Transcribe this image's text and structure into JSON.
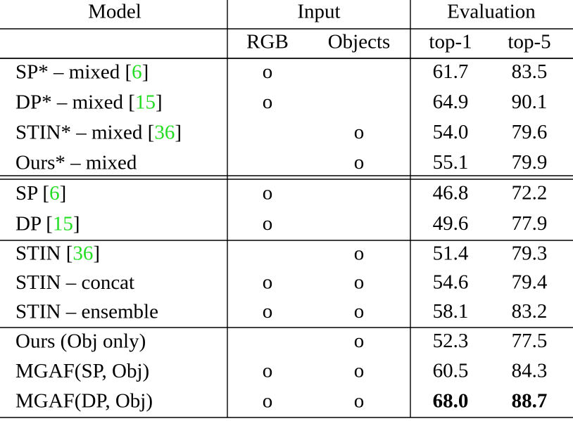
{
  "header": {
    "model": "Model",
    "input": "Input",
    "evaluation": "Evaluation",
    "rgb": "RGB",
    "objects": "Objects",
    "top1": "top-1",
    "top5": "top-5"
  },
  "groups": [
    [
      {
        "model": [
          {
            "text": "SP* – mixed ["
          },
          {
            "cite": "6"
          },
          {
            "text": "]"
          }
        ],
        "rgb": "o",
        "objects": null,
        "top1": "61.7",
        "top5": "83.5"
      },
      {
        "model": [
          {
            "text": "DP* – mixed ["
          },
          {
            "cite": "15"
          },
          {
            "text": "]"
          }
        ],
        "rgb": "o",
        "objects": null,
        "top1": "64.9",
        "top5": "90.1"
      },
      {
        "model": [
          {
            "text": "STIN* – mixed ["
          },
          {
            "cite": "36"
          },
          {
            "text": "]"
          }
        ],
        "rgb": null,
        "objects": "o",
        "top1": "54.0",
        "top5": "79.6"
      },
      {
        "model": [
          {
            "text": "Ours* – mixed"
          }
        ],
        "rgb": null,
        "objects": "o",
        "top1": "55.1",
        "top5": "79.9"
      }
    ],
    [
      {
        "model": [
          {
            "text": "SP ["
          },
          {
            "cite": "6"
          },
          {
            "text": "]"
          }
        ],
        "rgb": "o",
        "objects": null,
        "top1": "46.8",
        "top5": "72.2"
      },
      {
        "model": [
          {
            "text": "DP ["
          },
          {
            "cite": "15"
          },
          {
            "text": "]"
          }
        ],
        "rgb": "o",
        "objects": null,
        "top1": "49.6",
        "top5": "77.9"
      }
    ],
    [
      {
        "model": [
          {
            "text": "STIN ["
          },
          {
            "cite": "36"
          },
          {
            "text": "]"
          }
        ],
        "rgb": null,
        "objects": "o",
        "top1": "51.4",
        "top5": "79.3"
      },
      {
        "model": [
          {
            "text": "STIN – concat"
          }
        ],
        "rgb": "o",
        "objects": "o",
        "top1": "54.6",
        "top5": "79.4"
      },
      {
        "model": [
          {
            "text": "STIN – ensemble"
          }
        ],
        "rgb": "o",
        "objects": "o",
        "top1": "58.1",
        "top5": "83.2"
      }
    ],
    [
      {
        "model": [
          {
            "text": "Ours (Obj only)"
          }
        ],
        "rgb": null,
        "objects": "o",
        "top1": "52.3",
        "top5": "77.5"
      },
      {
        "model": [
          {
            "text": "MGAF(SP, Obj)"
          }
        ],
        "rgb": "o",
        "objects": "o",
        "top1": "60.5",
        "top5": "84.3"
      },
      {
        "model": [
          {
            "text": "MGAF(DP, Obj)"
          }
        ],
        "rgb": "o",
        "objects": "o",
        "top1": "68.0",
        "top5": "88.7",
        "bold": true
      }
    ]
  ]
}
